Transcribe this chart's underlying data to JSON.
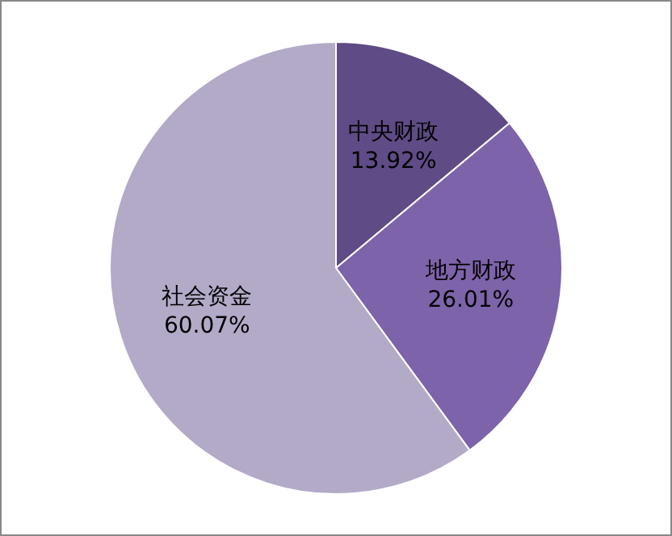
{
  "chart_data": {
    "type": "pie",
    "categories": [
      "中央财政",
      "地方财政",
      "社会资金"
    ],
    "values": [
      13.92,
      26.01,
      60.07
    ],
    "value_labels": [
      "13.92%",
      "26.01%",
      "60.07%"
    ],
    "colors": [
      "#5f4b85",
      "#7d63aa",
      "#b3aac8"
    ]
  }
}
